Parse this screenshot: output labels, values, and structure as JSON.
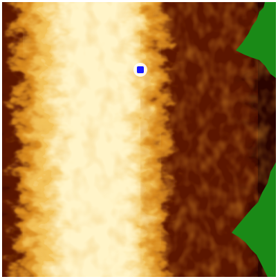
{
  "scene": {
    "type": "heat-terrain-view",
    "palette": {
      "hot_bright": "#fff4c8",
      "hot_mid": "#f3c35a",
      "warm": "#d98a1e",
      "ember": "#a6400a",
      "dark_ember": "#5c1402",
      "void": "#2a0400",
      "green_region": "#1a8a17",
      "agent_marker": "#1a1aff",
      "frame_border": "#ffffff"
    },
    "icons": {
      "agent": "agent-marker-icon"
    }
  }
}
